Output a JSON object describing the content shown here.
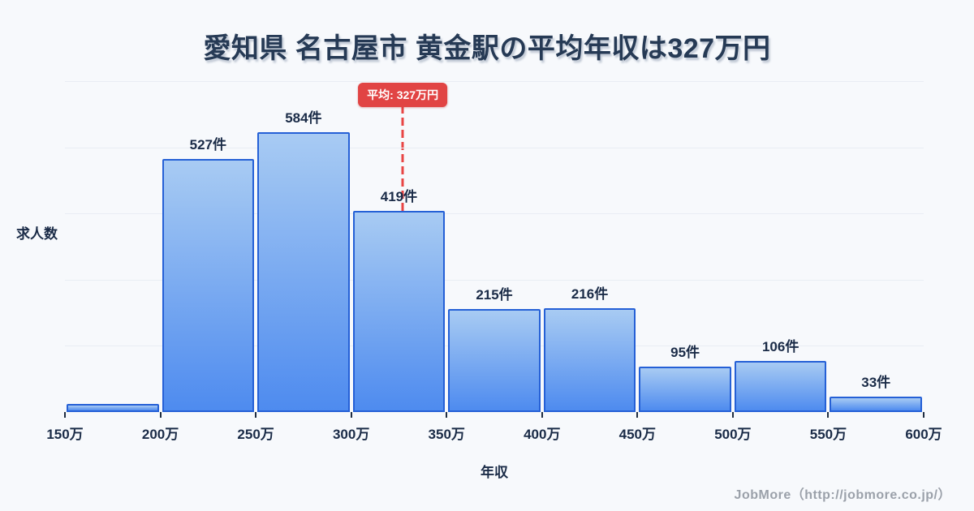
{
  "title": "愛知県 名古屋市 黄金駅の平均年収は327万円",
  "chart_data": {
    "type": "histogram",
    "title": "愛知県 名古屋市 黄金駅の平均年収は327万円",
    "xlabel": "年収",
    "ylabel": "求人数",
    "bin_edges": [
      150,
      200,
      250,
      300,
      350,
      400,
      450,
      500,
      550,
      600
    ],
    "bin_unit": "万",
    "x_tick_labels": [
      "150万",
      "200万",
      "250万",
      "300万",
      "350万",
      "400万",
      "450万",
      "500万",
      "550万",
      "600万"
    ],
    "values": [
      17,
      527,
      584,
      419,
      215,
      216,
      95,
      106,
      33
    ],
    "bar_labels": [
      "",
      "527件",
      "584件",
      "419件",
      "215件",
      "216件",
      "95件",
      "106件",
      "33件"
    ],
    "xlim": [
      150,
      600
    ],
    "ylim": [
      0,
      690
    ],
    "grid": "horizontal, 5 faint lines",
    "legend": "none",
    "average": {
      "value": 327,
      "label": "平均: 327万円"
    }
  },
  "footer": {
    "credit": "JobMore（http://jobmore.co.jp/）"
  },
  "colors": {
    "background": "#f7f9fc",
    "title_text": "#263a55",
    "axis_text": "#1a2b47",
    "bar_gradient_top": "#a8cbf3",
    "bar_gradient_bottom": "#4e8bef",
    "bar_border": "#2560d6",
    "grid_line": "#e9edf4",
    "average_red": "#e84545",
    "badge_background": "#e14444",
    "badge_text": "#ffffff",
    "footer_text": "#9ba1aa"
  }
}
